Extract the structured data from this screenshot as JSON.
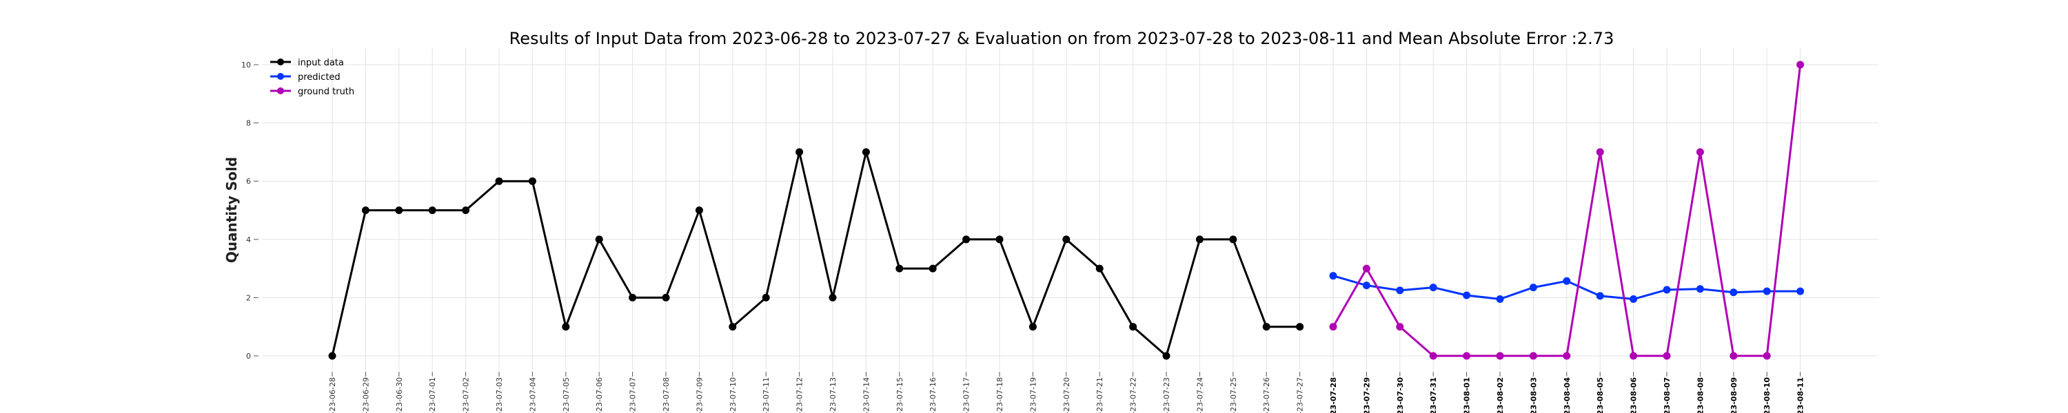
{
  "chart_data": {
    "type": "line",
    "title": "Results of Input Data from 2023-06-28 to 2023-07-27 & Evaluation on from 2023-07-28 to 2023-08-11 and Mean Absolute Error  :2.73",
    "xlabel": "",
    "ylabel": "Quantity Sold",
    "ylim": [
      0,
      10
    ],
    "yticks": [
      0,
      2,
      4,
      6,
      8,
      10
    ],
    "grid": true,
    "legend_position": "top-left",
    "x": [
      "2023-06-28",
      "2023-06-29",
      "2023-06-30",
      "2023-07-01",
      "2023-07-02",
      "2023-07-03",
      "2023-07-04",
      "2023-07-05",
      "2023-07-06",
      "2023-07-07",
      "2023-07-08",
      "2023-07-09",
      "2023-07-10",
      "2023-07-11",
      "2023-07-12",
      "2023-07-13",
      "2023-07-14",
      "2023-07-15",
      "2023-07-16",
      "2023-07-17",
      "2023-07-18",
      "2023-07-19",
      "2023-07-20",
      "2023-07-21",
      "2023-07-22",
      "2023-07-23",
      "2023-07-24",
      "2023-07-25",
      "2023-07-26",
      "2023-07-27",
      "2023-07-28",
      "2023-07-29",
      "2023-07-30",
      "2023-07-31",
      "2023-08-01",
      "2023-08-02",
      "2023-08-03",
      "2023-08-04",
      "2023-08-05",
      "2023-08-06",
      "2023-08-07",
      "2023-08-08",
      "2023-08-09",
      "2023-08-10",
      "2023-08-11"
    ],
    "x_tick_labels": [
      "-23-06-28",
      "-23-06-29",
      "-23-06-30",
      "-23-07-01",
      "-23-07-02",
      "-23-07-03",
      "-23-07-04",
      "-23-07-05",
      "-23-07-06",
      "-23-07-07",
      "-23-07-08",
      "-23-07-09",
      "-23-07-10",
      "-23-07-11",
      "-23-07-12",
      "-23-07-13",
      "-23-07-14",
      "-23-07-15",
      "-23-07-16",
      "-23-07-17",
      "-23-07-18",
      "-23-07-19",
      "-23-07-20",
      "-23-07-21",
      "-23-07-22",
      "-23-07-23",
      "-23-07-24",
      "-23-07-25",
      "-23-07-26",
      "-23-07-27",
      "-23-07-28",
      "-23-07-29",
      "-23-07-30",
      "-23-07-31",
      "-23-08-01",
      "-23-08-02",
      "-23-08-03",
      "-23-08-04",
      "-23-08-05",
      "-23-08-06",
      "-23-08-07",
      "-23-08-08",
      "-23-08-09",
      "-23-08-10",
      "-23-08-11"
    ],
    "bold_ticks_from": "2023-07-28",
    "series": [
      {
        "name": "input data",
        "color": "#000000",
        "x": [
          "2023-06-28",
          "2023-06-29",
          "2023-06-30",
          "2023-07-01",
          "2023-07-02",
          "2023-07-03",
          "2023-07-04",
          "2023-07-05",
          "2023-07-06",
          "2023-07-07",
          "2023-07-08",
          "2023-07-09",
          "2023-07-10",
          "2023-07-11",
          "2023-07-12",
          "2023-07-13",
          "2023-07-14",
          "2023-07-15",
          "2023-07-16",
          "2023-07-17",
          "2023-07-18",
          "2023-07-19",
          "2023-07-20",
          "2023-07-21",
          "2023-07-22",
          "2023-07-23",
          "2023-07-24",
          "2023-07-25",
          "2023-07-26",
          "2023-07-27"
        ],
        "values": [
          0,
          5,
          5,
          5,
          5,
          6,
          6,
          1,
          4,
          2,
          2,
          5,
          1,
          2,
          7,
          2,
          7,
          3,
          3,
          4,
          4,
          1,
          4,
          3,
          1,
          0,
          4,
          4,
          1,
          1
        ]
      },
      {
        "name": "predicted",
        "color": "#0033ff",
        "x": [
          "2023-07-28",
          "2023-07-29",
          "2023-07-30",
          "2023-07-31",
          "2023-08-01",
          "2023-08-02",
          "2023-08-03",
          "2023-08-04",
          "2023-08-05",
          "2023-08-06",
          "2023-08-07",
          "2023-08-08",
          "2023-08-09",
          "2023-08-10",
          "2023-08-11"
        ],
        "values": [
          2.75,
          2.42,
          2.25,
          2.35,
          2.08,
          1.95,
          2.35,
          2.57,
          2.06,
          1.95,
          2.27,
          2.3,
          2.18,
          2.22,
          2.22
        ]
      },
      {
        "name": "ground truth",
        "color": "#b000b5",
        "x": [
          "2023-07-28",
          "2023-07-29",
          "2023-07-30",
          "2023-07-31",
          "2023-08-01",
          "2023-08-02",
          "2023-08-03",
          "2023-08-04",
          "2023-08-05",
          "2023-08-06",
          "2023-08-07",
          "2023-08-08",
          "2023-08-09",
          "2023-08-10",
          "2023-08-11"
        ],
        "values": [
          1,
          3,
          1,
          0,
          0,
          0,
          0,
          0,
          7,
          0,
          0,
          7,
          0,
          0,
          10
        ]
      }
    ]
  }
}
